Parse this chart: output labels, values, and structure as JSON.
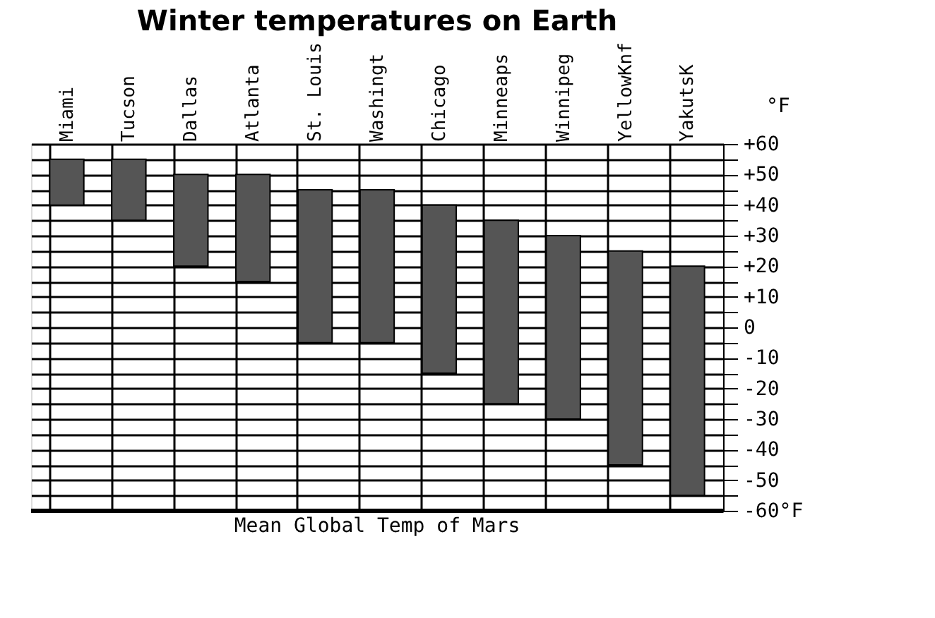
{
  "chart_data": {
    "type": "bar",
    "title": "Winter temperatures on Earth",
    "ylabel": "°F",
    "categories": [
      "Miami",
      "Tucson",
      "Dallas",
      "Atlanta",
      "St. Louis",
      "Washingt",
      "Chicago",
      "Minneaps",
      "Winnipeg",
      "YellowKnf",
      "YakutsK"
    ],
    "base": [
      40,
      35,
      20,
      15,
      -5,
      -5,
      -15,
      -25,
      -30,
      -45,
      -55
    ],
    "values": [
      15,
      20,
      30,
      35,
      50,
      50,
      55,
      60,
      60,
      70,
      75
    ],
    "color": "#555555",
    "ylim": [
      -60,
      60
    ],
    "yticks": [
      {
        "value": 60,
        "label": "+60"
      },
      {
        "value": 55,
        "label": null
      },
      {
        "value": 50,
        "label": "+50"
      },
      {
        "value": 45,
        "label": null
      },
      {
        "value": 40,
        "label": "+40"
      },
      {
        "value": 35,
        "label": null
      },
      {
        "value": 30,
        "label": "+30"
      },
      {
        "value": 25,
        "label": null
      },
      {
        "value": 20,
        "label": "+20"
      },
      {
        "value": 15,
        "label": null
      },
      {
        "value": 10,
        "label": "+10"
      },
      {
        "value": 5,
        "label": null
      },
      0,
      {
        "value": -5,
        "label": null
      },
      -10,
      {
        "value": -15,
        "label": null
      },
      -20,
      {
        "value": -25,
        "label": null
      },
      -30,
      {
        "value": -35,
        "label": null
      },
      -40,
      {
        "value": -45,
        "label": null
      },
      -50,
      {
        "value": -55,
        "label": null
      },
      {
        "value": -60,
        "label": "-60°F"
      }
    ],
    "ref_lines": [
      {
        "axis": "y",
        "value": -60,
        "label": "Mean Global Temp of Mars"
      }
    ],
    "grid": true
  }
}
